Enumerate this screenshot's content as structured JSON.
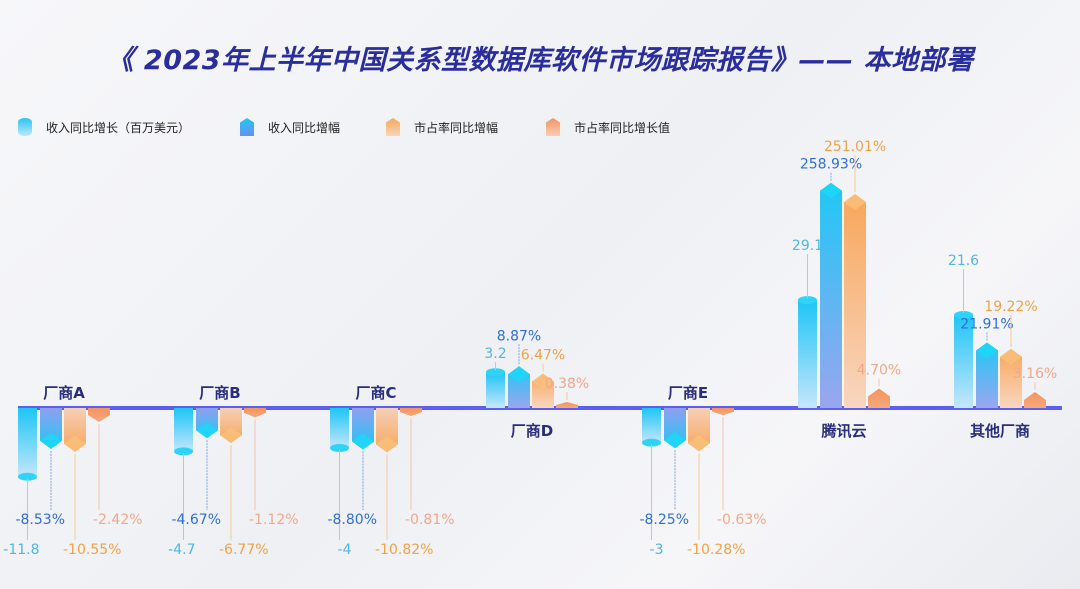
{
  "title": "《 2023年上半年中国关系型数据库软件市场跟踪报告》—— 本地部署",
  "chart_data": {
    "type": "bar",
    "title": "《 2023年上半年中国关系型数据库软件市场跟踪报告》—— 本地部署",
    "categories": [
      "厂商A",
      "厂商B",
      "厂商C",
      "厂商D",
      "厂商E",
      "腾讯云",
      "其他厂商"
    ],
    "series": [
      {
        "name": "收入同比增长（百万美元）",
        "color": "#29c5f6",
        "labels": [
          "-11.8",
          "-4.7",
          "-4",
          "3.2",
          "-3",
          "29.1",
          "21.6"
        ],
        "values": [
          -11.8,
          -4.7,
          -4,
          3.2,
          -3,
          29.1,
          21.6
        ]
      },
      {
        "name": "收入同比增幅",
        "color": "#2f8ff0",
        "labels": [
          "-8.53%",
          "-4.67%",
          "-8.80%",
          "8.87%",
          "-8.25%",
          "258.93%",
          "21.91%"
        ],
        "values": [
          -8.53,
          -4.67,
          -8.8,
          8.87,
          -8.25,
          258.93,
          21.91
        ]
      },
      {
        "name": "市占率同比增幅",
        "color": "#f7a65a",
        "labels": [
          "-10.55%",
          "-6.77%",
          "-10.82%",
          "6.47%",
          "-10.28%",
          "251.01%",
          "19.22%"
        ],
        "values": [
          -10.55,
          -6.77,
          -10.82,
          6.47,
          -10.28,
          251.01,
          19.22
        ]
      },
      {
        "name": "市占率同比增长值",
        "color": "#f4935f",
        "labels": [
          "-2.42%",
          "-1.12%",
          "-0.81%",
          "0.38%",
          "-0.63%",
          "4.70%",
          "3.16%"
        ],
        "values": [
          -2.42,
          -1.12,
          -0.81,
          0.38,
          -0.63,
          4.7,
          3.16
        ]
      }
    ],
    "legend_position": "top-left",
    "grid": false,
    "axis_color": "#5b5ef0"
  }
}
